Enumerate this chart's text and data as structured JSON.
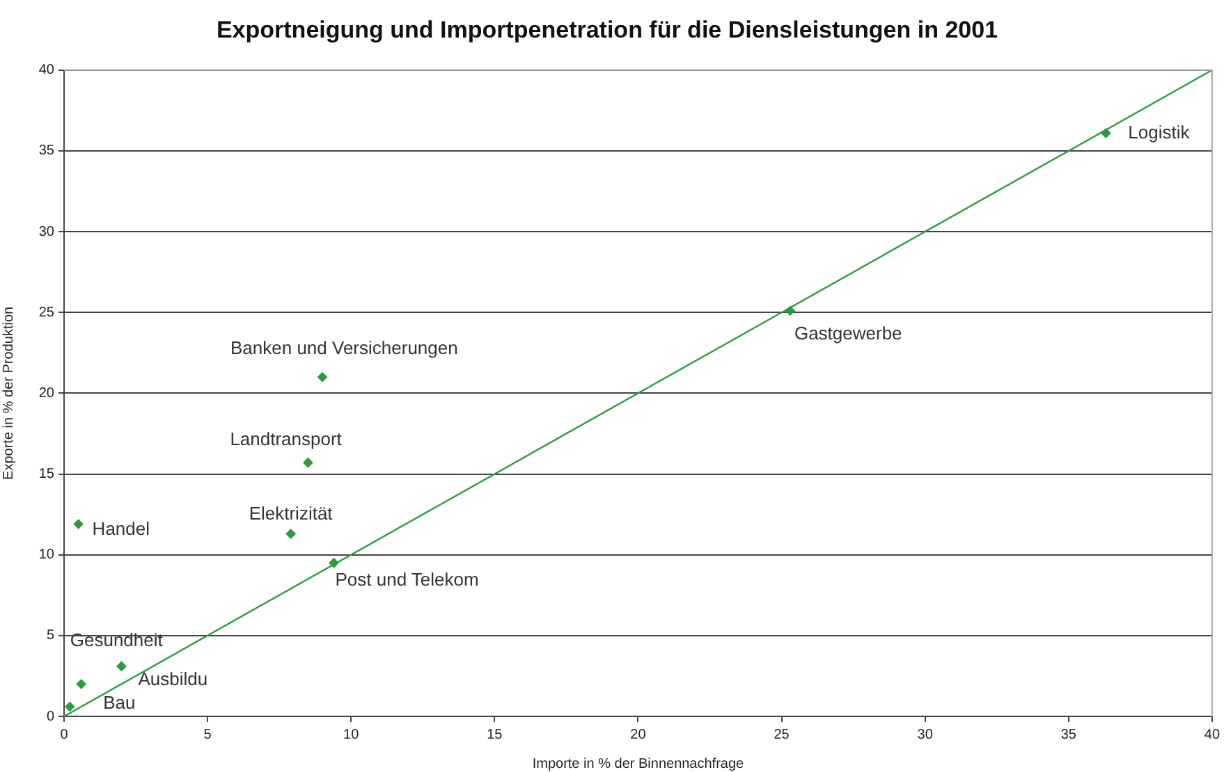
{
  "chart_data": {
    "type": "scatter",
    "title": "Exportneigung und Importpenetration für die Diensleistungen in 2001",
    "xlabel": "Importe in % der Binnennachfrage",
    "ylabel": "Exporte in % der Produktion",
    "series": [
      {
        "marker": "diamond",
        "color": "#2e9a3e",
        "x": [
          36.3,
          25.3,
          9.0,
          8.5,
          7.9,
          9.4,
          0.5,
          0.6,
          2.0,
          0.2
        ],
        "values": [
          36.1,
          25.1,
          21.0,
          15.7,
          11.3,
          9.5,
          11.9,
          2.0,
          3.1,
          0.6
        ]
      },
      {
        "type": "line",
        "marker": "none",
        "color": "#2e9a3e",
        "x": [
          0,
          40
        ],
        "values": [
          0,
          40
        ]
      }
    ],
    "annotations": [
      {
        "text": "Logistik",
        "x": 36.3,
        "y": 36.1
      },
      {
        "text": "Gastgewerbe",
        "x": 25.3,
        "y": 25.1
      },
      {
        "text": "Banken und Versicherungen",
        "x": 9.0,
        "y": 21.0
      },
      {
        "text": "Landtransport",
        "x": 8.5,
        "y": 15.7
      },
      {
        "text": "Elektrizität",
        "x": 7.9,
        "y": 11.3
      },
      {
        "text": "Post und Telekom",
        "x": 9.4,
        "y": 9.5
      },
      {
        "text": "Handel",
        "x": 0.5,
        "y": 11.9
      },
      {
        "text": "Gesundheit",
        "x": 0.6,
        "y": 2.0
      },
      {
        "text": "Ausbildu",
        "x": 2.0,
        "y": 3.1
      },
      {
        "text": "Bau",
        "x": 0.2,
        "y": 0.6
      }
    ],
    "xlim": [
      0,
      40
    ],
    "xticks": [
      0,
      5,
      10,
      15,
      20,
      25,
      30,
      35,
      40
    ],
    "ylim": [
      0,
      40
    ],
    "yticks": [
      0,
      5,
      10,
      15,
      20,
      25,
      30,
      35,
      40
    ],
    "grid": "y",
    "legend": false
  }
}
